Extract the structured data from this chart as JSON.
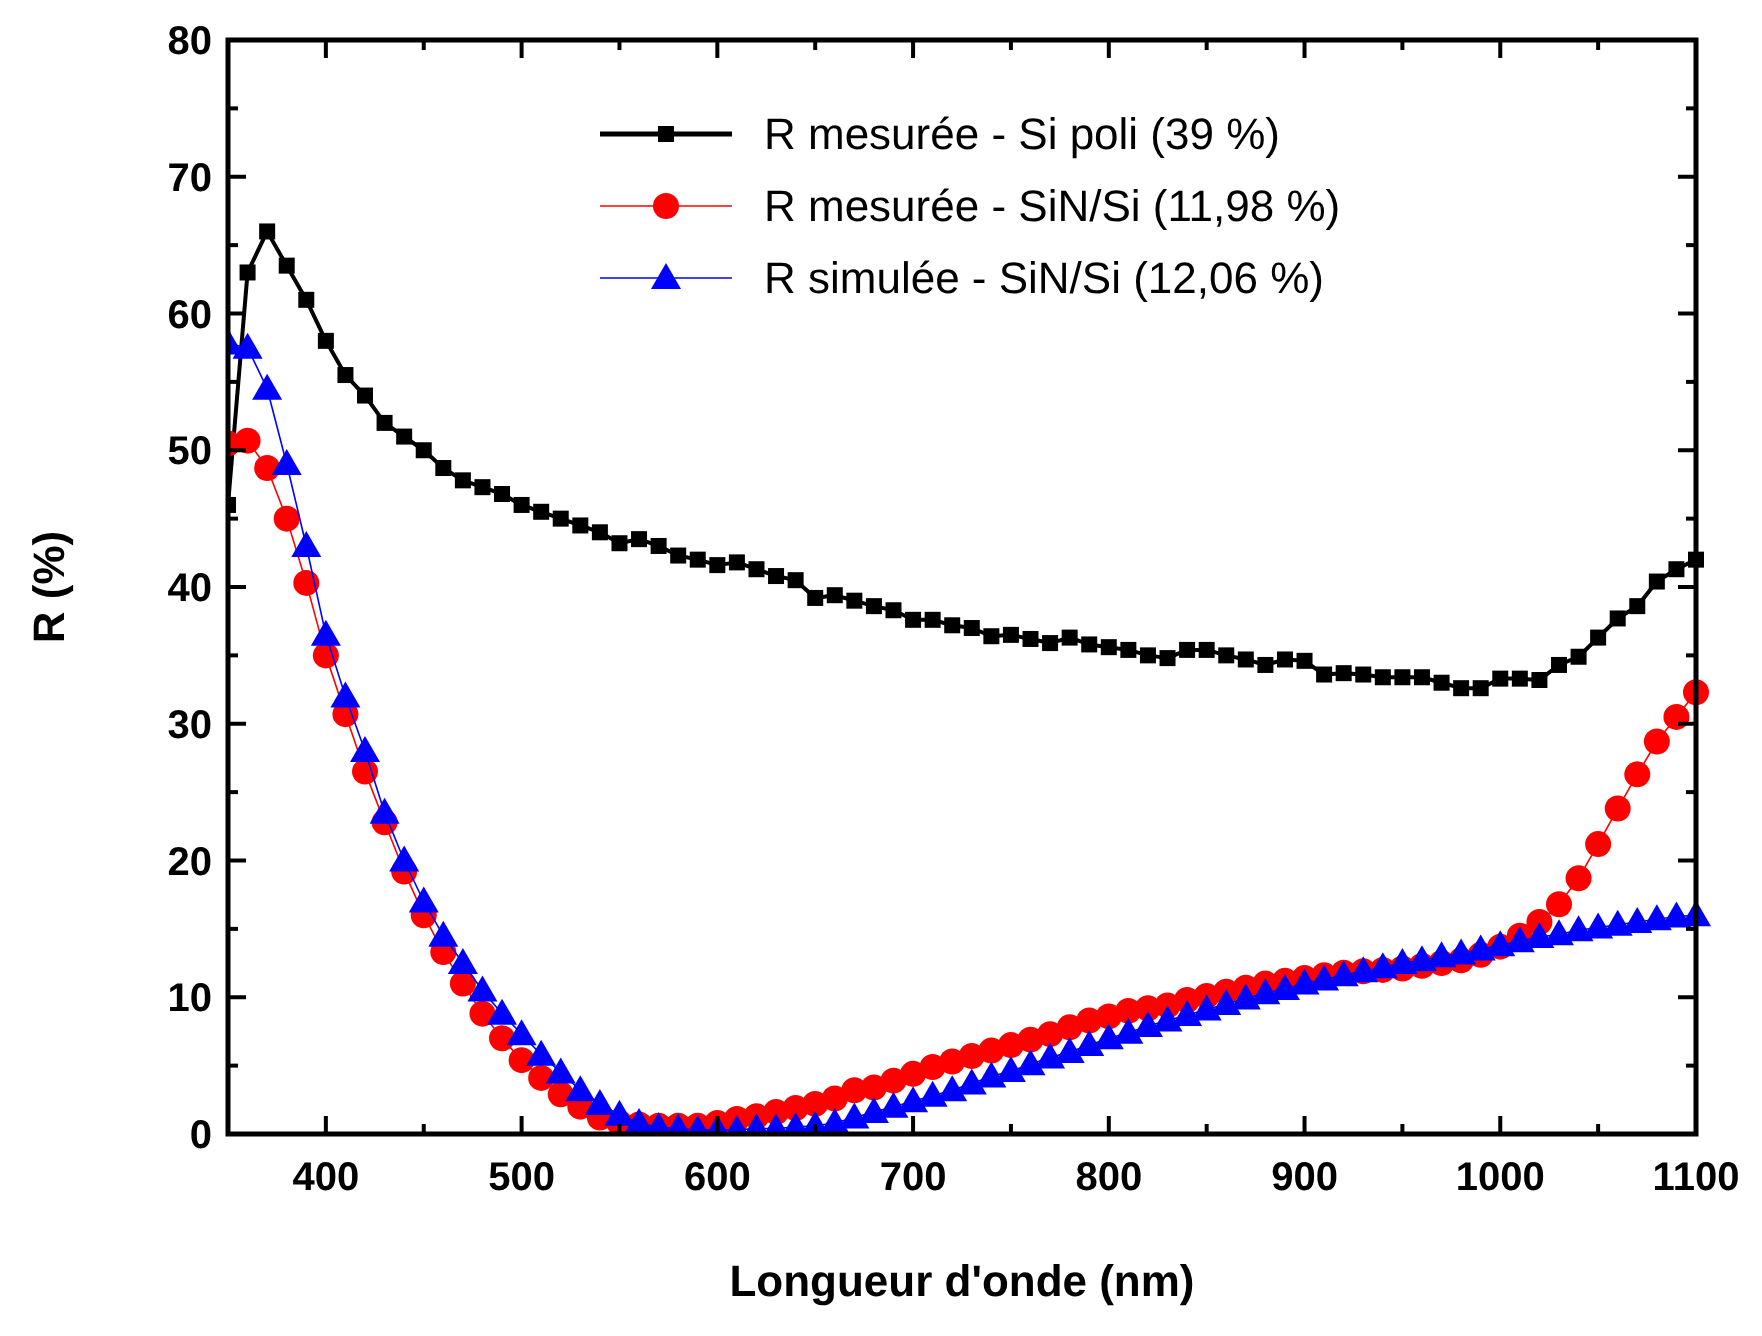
{
  "chart_data": {
    "type": "line",
    "xlabel": "Longueur d'onde (nm)",
    "ylabel": "R (%)",
    "x": [
      350,
      360,
      370,
      380,
      390,
      400,
      410,
      420,
      430,
      440,
      450,
      460,
      470,
      480,
      490,
      500,
      510,
      520,
      530,
      540,
      550,
      560,
      570,
      580,
      590,
      600,
      610,
      620,
      630,
      640,
      650,
      660,
      670,
      680,
      690,
      700,
      710,
      720,
      730,
      740,
      750,
      760,
      770,
      780,
      790,
      800,
      810,
      820,
      830,
      840,
      850,
      860,
      870,
      880,
      890,
      900,
      910,
      920,
      930,
      940,
      950,
      960,
      970,
      980,
      990,
      1000,
      1010,
      1020,
      1030,
      1040,
      1050,
      1060,
      1070,
      1080,
      1090,
      1100
    ],
    "series": [
      {
        "name": "R mesurée - Si poli (39 %)",
        "color": "#000000",
        "marker": "square",
        "values": [
          46,
          63,
          66,
          63.5,
          61,
          58,
          55.5,
          54,
          52,
          51,
          50,
          48.7,
          47.8,
          47.3,
          46.8,
          46,
          45.5,
          45,
          44.5,
          44,
          43.2,
          43.5,
          43,
          42.3,
          42,
          41.6,
          41.8,
          41.3,
          40.8,
          40.5,
          39.2,
          39.4,
          39,
          38.6,
          38.3,
          37.6,
          37.6,
          37.2,
          37,
          36.4,
          36.5,
          36.2,
          35.9,
          36.3,
          35.8,
          35.6,
          35.4,
          35,
          34.8,
          35.4,
          35.4,
          35,
          34.7,
          34.3,
          34.7,
          34.6,
          33.6,
          33.7,
          33.6,
          33.4,
          33.4,
          33.4,
          33,
          32.6,
          32.6,
          33.3,
          33.3,
          33.2,
          34.3,
          34.9,
          36.3,
          37.7,
          38.6,
          40.4,
          41.3,
          42
        ]
      },
      {
        "name": "R mesurée - SiN/Si (11,98 %)",
        "color": "#ff0000",
        "marker": "circle",
        "values": [
          50.5,
          50.7,
          48.7,
          45,
          40.3,
          35,
          30.7,
          26.5,
          22.8,
          19.2,
          16,
          13.3,
          11,
          8.8,
          7,
          5.4,
          4.1,
          2.9,
          2,
          1.2,
          0.8,
          0.7,
          0.6,
          0.6,
          0.6,
          0.8,
          1.1,
          1.3,
          1.6,
          1.9,
          2.2,
          2.6,
          3.2,
          3.4,
          3.9,
          4.4,
          4.9,
          5.3,
          5.7,
          6.1,
          6.5,
          6.9,
          7.3,
          7.8,
          8.3,
          8.6,
          9,
          9.2,
          9.4,
          9.8,
          10.1,
          10.4,
          10.7,
          11,
          11.2,
          11.4,
          11.6,
          11.8,
          11.9,
          12,
          12.1,
          12.3,
          12.5,
          12.7,
          13.1,
          13.7,
          14.5,
          15.5,
          16.8,
          18.7,
          21.2,
          23.8,
          26.3,
          28.7,
          30.5,
          32.3
        ]
      },
      {
        "name": "R simulée - SiN/Si (12,06 %)",
        "color": "#0000ff",
        "marker": "triangle",
        "values": [
          57.8,
          57.5,
          54.5,
          49,
          43,
          36.5,
          32,
          28,
          23.5,
          20,
          17,
          14.5,
          12.5,
          10.5,
          8.8,
          7.3,
          5.8,
          4.5,
          3.2,
          2.2,
          1.4,
          0.8,
          0.5,
          0.4,
          0.3,
          0.3,
          0.3,
          0.4,
          0.4,
          0.5,
          0.6,
          0.8,
          1.2,
          1.6,
          2,
          2.4,
          2.8,
          3.2,
          3.7,
          4.2,
          4.6,
          5.1,
          5.6,
          6,
          6.5,
          7,
          7.4,
          7.9,
          8.3,
          8.7,
          9.1,
          9.5,
          9.9,
          10.3,
          10.6,
          11,
          11.3,
          11.6,
          11.9,
          12.2,
          12.5,
          12.7,
          13,
          13.2,
          13.5,
          13.8,
          14.1,
          14.4,
          14.6,
          14.9,
          15.1,
          15.3,
          15.5,
          15.7,
          15.9,
          16
        ]
      }
    ],
    "xlim": [
      350,
      1100
    ],
    "xticks": [
      400,
      {
        "value": 450,
        "label": null
      },
      500,
      {
        "value": 550,
        "label": null
      },
      600,
      {
        "value": 650,
        "label": null
      },
      700,
      {
        "value": 750,
        "label": null
      },
      800,
      {
        "value": 850,
        "label": null
      },
      900,
      {
        "value": 950,
        "label": null
      },
      1000,
      {
        "value": 1050,
        "label": null
      },
      1100
    ],
    "ylim": [
      0,
      80
    ],
    "yticks": [
      0,
      {
        "value": 5,
        "label": null
      },
      10,
      {
        "value": 15,
        "label": null
      },
      20,
      {
        "value": 25,
        "label": null
      },
      30,
      {
        "value": 35,
        "label": null
      },
      40,
      {
        "value": 45,
        "label": null
      },
      50,
      {
        "value": 55,
        "label": null
      },
      60,
      {
        "value": 65,
        "label": null
      },
      70,
      {
        "value": 75,
        "label": null
      },
      80
    ],
    "grid": false,
    "legend": "top right",
    "line_style": "solid"
  }
}
